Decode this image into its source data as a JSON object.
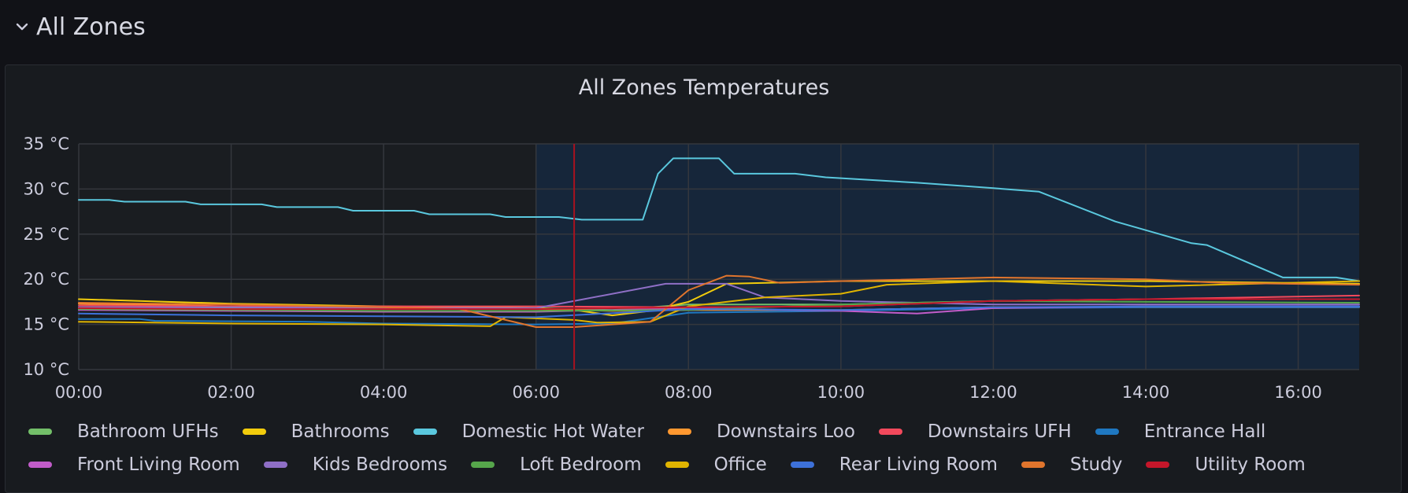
{
  "row": {
    "title": "All Zones",
    "chevron_icon": "chevron-down-icon"
  },
  "panel": {
    "title": "All Zones Temperatures"
  },
  "chart_data": {
    "type": "line",
    "title": "All Zones Temperatures",
    "xlabel": "",
    "ylabel": "",
    "x_range_hours": [
      0,
      16.8
    ],
    "ylim": [
      10,
      35
    ],
    "yticks": [
      35,
      30,
      25,
      20,
      15,
      10
    ],
    "ytick_labels": [
      "35 °C",
      "30 °C",
      "25 °C",
      "20 °C",
      "15 °C",
      "10 °C"
    ],
    "xticks": [
      0,
      2,
      4,
      6,
      8,
      10,
      12,
      14,
      16
    ],
    "xtick_labels": [
      "00:00",
      "02:00",
      "04:00",
      "06:00",
      "08:00",
      "10:00",
      "12:00",
      "14:00",
      "16:00"
    ],
    "highlight_region_hours": [
      6,
      16.8
    ],
    "marker_line_hour": 6.5,
    "grid": true,
    "legend_position": "bottom",
    "series": [
      {
        "name": "Bathroom UFHs",
        "color": "#73bf69",
        "x": [
          0,
          6,
          7,
          8,
          10,
          12,
          14,
          16.8
        ],
        "y": [
          16.8,
          16.8,
          16.6,
          17.2,
          17.2,
          17.6,
          17.8,
          17.8
        ]
      },
      {
        "name": "Bathrooms",
        "color": "#f2cc0c",
        "x": [
          0,
          2,
          4,
          6,
          6.5,
          7,
          7.5,
          8,
          8.5,
          10,
          12,
          14,
          16.8
        ],
        "y": [
          17.8,
          17.3,
          17.0,
          16.8,
          16.6,
          16.0,
          16.5,
          17.5,
          19.5,
          19.8,
          19.8,
          19.8,
          19.5
        ]
      },
      {
        "name": "Domestic Hot Water",
        "color": "#5ac8de",
        "x": [
          0,
          0.4,
          0.6,
          1.4,
          1.6,
          2.4,
          2.6,
          3.4,
          3.6,
          4.4,
          4.6,
          5.4,
          5.6,
          6.3,
          6.6,
          7.4,
          7.6,
          7.8,
          8.4,
          8.6,
          9.4,
          9.8,
          10,
          11,
          12,
          12.6,
          13.6,
          14.6,
          14.8,
          15.8,
          16.5,
          16.8
        ],
        "y": [
          28.8,
          28.8,
          28.6,
          28.6,
          28.3,
          28.3,
          28.0,
          28.0,
          27.6,
          27.6,
          27.2,
          27.2,
          26.9,
          26.9,
          26.6,
          26.6,
          31.7,
          33.4,
          33.4,
          31.7,
          31.7,
          31.3,
          31.2,
          30.7,
          30.1,
          29.7,
          26.4,
          24.0,
          23.8,
          20.2,
          20.2,
          19.8
        ]
      },
      {
        "name": "Downstairs Loo",
        "color": "#ff9830",
        "x": [
          0,
          2,
          4,
          6,
          7,
          8,
          10,
          12,
          14,
          16.8
        ],
        "y": [
          17.3,
          17.0,
          16.9,
          16.7,
          16.5,
          16.6,
          16.6,
          16.9,
          16.9,
          16.9
        ]
      },
      {
        "name": "Downstairs UFH",
        "color": "#f2495c",
        "x": [
          0,
          2,
          4,
          6,
          8,
          10,
          12,
          14,
          16.8
        ],
        "y": [
          17.1,
          17.0,
          17.0,
          17.0,
          16.9,
          17.0,
          17.6,
          17.8,
          18.2
        ]
      },
      {
        "name": "Entrance Hall",
        "color": "#1f78c1",
        "x": [
          0,
          0.8,
          1,
          3,
          4,
          6,
          7,
          8,
          10,
          12,
          14,
          16.8
        ],
        "y": [
          15.6,
          15.6,
          15.4,
          15.3,
          15.1,
          15.0,
          15.1,
          16.3,
          16.5,
          16.8,
          16.9,
          16.9
        ]
      },
      {
        "name": "Front Living Room",
        "color": "#c15cc9",
        "x": [
          0,
          2,
          4,
          6,
          8,
          10,
          11,
          12,
          14,
          16.8
        ],
        "y": [
          16.6,
          16.5,
          16.4,
          16.4,
          16.8,
          16.5,
          16.2,
          16.8,
          17.0,
          17.0
        ]
      },
      {
        "name": "Kids Bedrooms",
        "color": "#8f6fc6",
        "x": [
          0,
          2,
          4,
          6,
          7.7,
          8.5,
          9,
          10,
          12,
          14,
          16.8
        ],
        "y": [
          16.9,
          16.9,
          16.8,
          16.8,
          19.5,
          19.5,
          18.0,
          17.6,
          17.2,
          17.2,
          17.2
        ]
      },
      {
        "name": "Loft Bedroom",
        "color": "#56a64b",
        "x": [
          0,
          2,
          4,
          6,
          8,
          10,
          12,
          14,
          16.8
        ],
        "y": [
          16.7,
          16.6,
          16.5,
          16.5,
          16.6,
          17.2,
          17.6,
          17.5,
          17.4
        ]
      },
      {
        "name": "Office",
        "color": "#e0b400",
        "x": [
          0,
          2,
          4,
          5.4,
          5.6,
          6.5,
          6.8,
          7.5,
          8,
          8.5,
          9,
          10,
          10.6,
          12,
          14,
          16.8
        ],
        "y": [
          15.3,
          15.1,
          15.0,
          14.8,
          15.8,
          15.5,
          15.2,
          15.3,
          17.0,
          17.5,
          18.0,
          18.4,
          19.4,
          19.8,
          19.2,
          19.8
        ]
      },
      {
        "name": "Rear Living Room",
        "color": "#3d71d9",
        "x": [
          0,
          2,
          4,
          6,
          8,
          10,
          12,
          14,
          16.8
        ],
        "y": [
          16.2,
          16.0,
          15.9,
          15.8,
          16.7,
          16.6,
          16.9,
          17.0,
          17.0
        ]
      },
      {
        "name": "Study",
        "color": "#e0752d",
        "x": [
          0,
          2,
          4,
          5,
          6,
          6.5,
          7.5,
          8,
          8.5,
          8.8,
          9.2,
          10,
          12,
          14,
          15,
          16.8
        ],
        "y": [
          17.4,
          17.2,
          16.9,
          16.7,
          14.7,
          14.7,
          15.3,
          18.8,
          20.4,
          20.3,
          19.6,
          19.8,
          20.2,
          20.0,
          19.6,
          19.4
        ]
      },
      {
        "name": "Utility Room",
        "color": "#c4162a",
        "x": [
          0,
          2,
          4,
          6,
          8,
          10,
          12,
          14,
          16.8
        ],
        "y": [
          16.8,
          16.7,
          16.7,
          16.7,
          16.9,
          17.0,
          17.6,
          17.8,
          17.8
        ]
      }
    ]
  }
}
